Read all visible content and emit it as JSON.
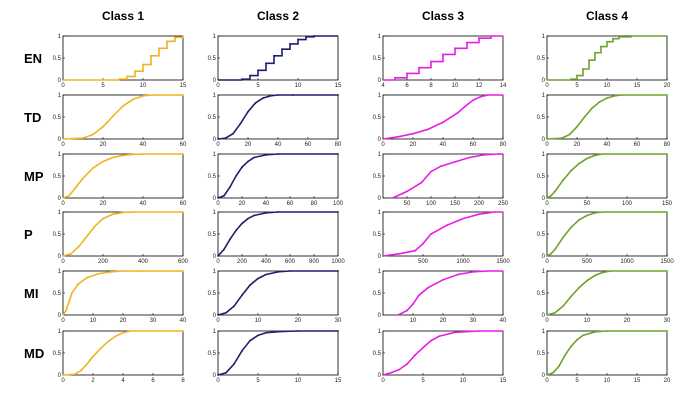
{
  "chart_data": {
    "type": "line",
    "columns": [
      {
        "title": "Class 1",
        "color": "#f0b323"
      },
      {
        "title": "Class 2",
        "color": "#1f1f6e"
      },
      {
        "title": "Class 3",
        "color": "#e61ee6"
      },
      {
        "title": "Class 4",
        "color": "#6fa32a"
      }
    ],
    "rows": [
      "EN",
      "TD",
      "MP",
      "P",
      "MI",
      "MD"
    ],
    "y_ticks": [
      0,
      0.5,
      1
    ],
    "ylim": [
      0,
      1
    ],
    "panels": [
      [
        {
          "xticks": [
            0,
            5,
            10,
            15
          ],
          "xlim": [
            0,
            15
          ],
          "kind": "step",
          "x": [
            7,
            8,
            9,
            10,
            11,
            12,
            13,
            14,
            15
          ],
          "y": [
            0.02,
            0.08,
            0.2,
            0.35,
            0.55,
            0.72,
            0.88,
            0.97,
            1.0
          ]
        },
        {
          "xticks": [
            0,
            20,
            40,
            60
          ],
          "xlim": [
            0,
            60
          ],
          "x": [
            0,
            10,
            15,
            20,
            25,
            30,
            35,
            40,
            45,
            60
          ],
          "y": [
            0,
            0.02,
            0.1,
            0.28,
            0.52,
            0.75,
            0.9,
            0.98,
            1,
            1
          ]
        },
        {
          "xticks": [
            0,
            20,
            40,
            60
          ],
          "xlim": [
            0,
            60
          ],
          "x": [
            0,
            3,
            6,
            10,
            15,
            20,
            25,
            30,
            35,
            40,
            60
          ],
          "y": [
            0,
            0.05,
            0.22,
            0.45,
            0.68,
            0.83,
            0.92,
            0.97,
            0.99,
            1,
            1
          ]
        },
        {
          "xticks": [
            0,
            200,
            400,
            600
          ],
          "xlim": [
            0,
            600
          ],
          "x": [
            0,
            40,
            80,
            120,
            160,
            200,
            250,
            300,
            350,
            600
          ],
          "y": [
            0,
            0.05,
            0.22,
            0.45,
            0.68,
            0.85,
            0.95,
            0.99,
            1,
            1
          ]
        },
        {
          "xticks": [
            0,
            10,
            20,
            30,
            40
          ],
          "xlim": [
            0,
            40
          ],
          "x": [
            0,
            1,
            2,
            3,
            5,
            8,
            12,
            16,
            20,
            25,
            40
          ],
          "y": [
            0,
            0.1,
            0.3,
            0.5,
            0.7,
            0.85,
            0.94,
            0.98,
            1,
            1,
            1
          ]
        },
        {
          "xticks": [
            0,
            2,
            4,
            6,
            8
          ],
          "xlim": [
            0,
            8
          ],
          "x": [
            0,
            0.8,
            1.2,
            1.6,
            2,
            2.5,
            3,
            3.5,
            4,
            4.5,
            8
          ],
          "y": [
            0,
            0.02,
            0.1,
            0.25,
            0.42,
            0.6,
            0.76,
            0.88,
            0.96,
            1,
            1
          ]
        }
      ],
      [
        {
          "xticks": [
            0,
            5,
            10,
            15
          ],
          "xlim": [
            0,
            15
          ],
          "kind": "step",
          "x": [
            3,
            4,
            5,
            6,
            7,
            8,
            9,
            10,
            11,
            12
          ],
          "y": [
            0.02,
            0.1,
            0.22,
            0.38,
            0.55,
            0.7,
            0.82,
            0.92,
            0.98,
            1.0
          ]
        },
        {
          "xticks": [
            0,
            20,
            40,
            60,
            80
          ],
          "xlim": [
            0,
            80
          ],
          "x": [
            0,
            5,
            10,
            15,
            20,
            25,
            30,
            35,
            40,
            50,
            80
          ],
          "y": [
            0,
            0.02,
            0.12,
            0.35,
            0.62,
            0.82,
            0.93,
            0.98,
            1,
            1,
            1
          ]
        },
        {
          "xticks": [
            0,
            20,
            40,
            60,
            80,
            100
          ],
          "xlim": [
            0,
            100
          ],
          "x": [
            0,
            5,
            10,
            15,
            20,
            25,
            30,
            40,
            50,
            100
          ],
          "y": [
            0,
            0.05,
            0.25,
            0.5,
            0.7,
            0.83,
            0.92,
            0.98,
            1,
            1
          ]
        },
        {
          "xticks": [
            0,
            200,
            400,
            600,
            800,
            1000
          ],
          "xlim": [
            0,
            1000
          ],
          "x": [
            0,
            50,
            100,
            150,
            200,
            250,
            300,
            400,
            500,
            1000
          ],
          "y": [
            0,
            0.15,
            0.38,
            0.58,
            0.74,
            0.85,
            0.92,
            0.98,
            1,
            1
          ]
        },
        {
          "xticks": [
            0,
            10,
            20,
            30
          ],
          "xlim": [
            0,
            30
          ],
          "x": [
            0,
            2,
            4,
            6,
            8,
            10,
            12,
            15,
            18,
            30
          ],
          "y": [
            0,
            0.05,
            0.2,
            0.45,
            0.68,
            0.83,
            0.92,
            0.98,
            1,
            1
          ]
        },
        {
          "xticks": [
            0,
            5,
            10,
            15
          ],
          "xlim": [
            0,
            15
          ],
          "x": [
            0,
            1,
            2,
            3,
            4,
            5,
            6,
            8,
            10,
            15
          ],
          "y": [
            0,
            0.05,
            0.25,
            0.55,
            0.78,
            0.9,
            0.96,
            0.99,
            1,
            1
          ]
        }
      ],
      [
        {
          "xticks": [
            4,
            6,
            8,
            10,
            12,
            14
          ],
          "xlim": [
            4,
            14
          ],
          "kind": "step",
          "x": [
            5,
            6,
            7,
            8,
            9,
            10,
            11,
            12,
            13
          ],
          "y": [
            0.05,
            0.15,
            0.28,
            0.42,
            0.58,
            0.72,
            0.85,
            0.95,
            1.0
          ]
        },
        {
          "xticks": [
            0,
            20,
            40,
            60,
            80
          ],
          "xlim": [
            0,
            80
          ],
          "x": [
            0,
            10,
            20,
            30,
            40,
            50,
            55,
            60,
            65,
            70
          ],
          "y": [
            0,
            0.05,
            0.12,
            0.22,
            0.38,
            0.6,
            0.75,
            0.88,
            0.96,
            1
          ]
        },
        {
          "xticks": [
            50,
            100,
            150,
            200,
            250
          ],
          "xlim": [
            0,
            250
          ],
          "x": [
            20,
            50,
            80,
            100,
            120,
            150,
            180,
            210,
            240
          ],
          "y": [
            0,
            0.15,
            0.35,
            0.6,
            0.72,
            0.82,
            0.92,
            0.98,
            1
          ]
        },
        {
          "xticks": [
            500,
            1000,
            1500
          ],
          "xlim": [
            0,
            1500
          ],
          "x": [
            0,
            200,
            400,
            500,
            600,
            800,
            1000,
            1200,
            1400
          ],
          "y": [
            0,
            0.05,
            0.12,
            0.28,
            0.5,
            0.7,
            0.85,
            0.95,
            1
          ]
        },
        {
          "xticks": [
            10,
            20,
            30,
            40
          ],
          "xlim": [
            0,
            40
          ],
          "x": [
            5,
            8,
            10,
            12,
            15,
            20,
            25,
            30,
            35
          ],
          "y": [
            0,
            0.1,
            0.25,
            0.45,
            0.62,
            0.8,
            0.92,
            0.98,
            1
          ]
        },
        {
          "xticks": [
            0,
            5,
            10,
            15
          ],
          "xlim": [
            0,
            15
          ],
          "x": [
            0,
            1,
            2,
            3,
            4,
            5,
            6,
            7,
            9,
            12
          ],
          "y": [
            0,
            0.05,
            0.12,
            0.25,
            0.45,
            0.62,
            0.78,
            0.88,
            0.97,
            1
          ]
        }
      ],
      [
        {
          "xticks": [
            0,
            5,
            10,
            15,
            20
          ],
          "xlim": [
            0,
            20
          ],
          "kind": "step",
          "x": [
            4,
            5,
            6,
            7,
            8,
            9,
            10,
            11,
            12,
            14
          ],
          "y": [
            0.02,
            0.1,
            0.25,
            0.45,
            0.62,
            0.76,
            0.87,
            0.94,
            0.98,
            1.0
          ]
        },
        {
          "xticks": [
            0,
            20,
            40,
            60,
            80
          ],
          "xlim": [
            0,
            80
          ],
          "x": [
            0,
            10,
            15,
            20,
            25,
            30,
            35,
            40,
            45,
            50,
            80
          ],
          "y": [
            0,
            0.02,
            0.1,
            0.28,
            0.5,
            0.7,
            0.84,
            0.93,
            0.98,
            1,
            1
          ]
        },
        {
          "xticks": [
            0,
            50,
            100,
            150
          ],
          "xlim": [
            0,
            150
          ],
          "x": [
            0,
            5,
            10,
            20,
            30,
            40,
            50,
            60,
            70,
            150
          ],
          "y": [
            0,
            0.05,
            0.15,
            0.4,
            0.62,
            0.78,
            0.9,
            0.97,
            1,
            1
          ]
        },
        {
          "xticks": [
            0,
            500,
            1000,
            1500
          ],
          "xlim": [
            0,
            1500
          ],
          "x": [
            0,
            50,
            100,
            200,
            300,
            400,
            500,
            600,
            700,
            1500
          ],
          "y": [
            0,
            0.05,
            0.15,
            0.42,
            0.65,
            0.82,
            0.92,
            0.98,
            1,
            1
          ]
        },
        {
          "xticks": [
            0,
            10,
            20,
            30
          ],
          "xlim": [
            0,
            30
          ],
          "x": [
            0,
            2,
            4,
            6,
            8,
            10,
            12,
            14,
            16,
            30
          ],
          "y": [
            0,
            0.05,
            0.2,
            0.42,
            0.62,
            0.78,
            0.9,
            0.97,
            1,
            1
          ]
        },
        {
          "xticks": [
            0,
            5,
            10,
            15,
            20
          ],
          "xlim": [
            0,
            20
          ],
          "x": [
            0,
            1,
            2,
            3,
            4,
            5,
            6,
            8,
            10,
            20
          ],
          "y": [
            0,
            0.05,
            0.2,
            0.45,
            0.65,
            0.8,
            0.9,
            0.98,
            1,
            1
          ]
        }
      ]
    ]
  }
}
